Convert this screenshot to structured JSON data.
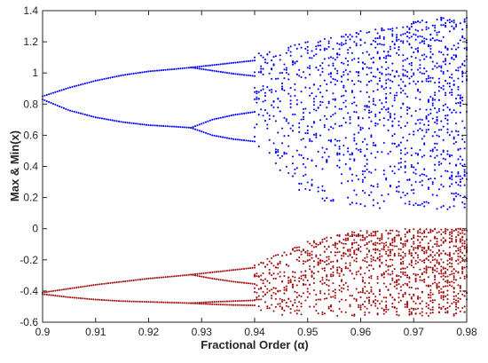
{
  "chart_data": {
    "type": "scatter",
    "title": "",
    "xlabel": "Fractional Order (α)",
    "ylabel": "Max & Min(x)",
    "xlim": [
      0.9,
      0.98
    ],
    "ylim": [
      -0.6,
      1.4
    ],
    "xticks": [
      "0.9",
      "0.91",
      "0.92",
      "0.93",
      "0.94",
      "0.95",
      "0.96",
      "0.97",
      "0.98"
    ],
    "yticks": [
      "-0.6",
      "-0.4",
      "-0.2",
      "0",
      "0.2",
      "0.4",
      "0.6",
      "0.8",
      "1",
      "1.2",
      "1.4"
    ],
    "grid": false,
    "legend": "none",
    "series": [
      {
        "color": "#0000ff",
        "marker": "dot",
        "periodic_branches": [
          {
            "x": [
              0.9,
              0.905,
              0.91,
              0.915,
              0.92,
              0.925,
              0.928
            ],
            "y": [
              0.85,
              0.905,
              0.95,
              0.985,
              1.01,
              1.025,
              1.035
            ]
          },
          {
            "x": [
              0.9,
              0.905,
              0.91,
              0.915,
              0.92,
              0.925,
              0.928
            ],
            "y": [
              0.83,
              0.76,
              0.715,
              0.685,
              0.665,
              0.655,
              0.648
            ]
          },
          {
            "x": [
              0.928,
              0.932,
              0.936,
              0.94
            ],
            "y": [
              1.035,
              1.05,
              1.065,
              1.08
            ]
          },
          {
            "x": [
              0.928,
              0.932,
              0.936,
              0.94
            ],
            "y": [
              1.035,
              1.015,
              0.995,
              0.98
            ]
          },
          {
            "x": [
              0.928,
              0.932,
              0.936,
              0.94
            ],
            "y": [
              0.648,
              0.7,
              0.73,
              0.75
            ]
          },
          {
            "x": [
              0.928,
              0.932,
              0.936,
              0.94
            ],
            "y": [
              0.648,
              0.6,
              0.575,
              0.56
            ]
          }
        ],
        "chaotic_band": {
          "x": [
            0.94,
            0.95,
            0.96,
            0.97,
            0.98
          ],
          "ymin": [
            0.5,
            0.2,
            0.13,
            0.12,
            0.12
          ],
          "ymax": [
            1.12,
            1.2,
            1.27,
            1.33,
            1.38
          ]
        }
      },
      {
        "color": "#a01010",
        "marker": "dot",
        "periodic_branches": [
          {
            "x": [
              0.9,
              0.905,
              0.91,
              0.915,
              0.92,
              0.925,
              0.928
            ],
            "y": [
              -0.41,
              -0.385,
              -0.36,
              -0.34,
              -0.32,
              -0.305,
              -0.295
            ]
          },
          {
            "x": [
              0.9,
              0.905,
              0.91,
              0.915,
              0.92,
              0.925,
              0.928
            ],
            "y": [
              -0.42,
              -0.44,
              -0.455,
              -0.465,
              -0.47,
              -0.475,
              -0.478
            ]
          },
          {
            "x": [
              0.928,
              0.932,
              0.936,
              0.94
            ],
            "y": [
              -0.295,
              -0.28,
              -0.265,
              -0.25
            ]
          },
          {
            "x": [
              0.928,
              0.932,
              0.936,
              0.94
            ],
            "y": [
              -0.295,
              -0.32,
              -0.34,
              -0.355
            ]
          },
          {
            "x": [
              0.928,
              0.932,
              0.936,
              0.94
            ],
            "y": [
              -0.478,
              -0.47,
              -0.465,
              -0.46
            ]
          },
          {
            "x": [
              0.928,
              0.932,
              0.936,
              0.94
            ],
            "y": [
              -0.478,
              -0.485,
              -0.49,
              -0.492
            ]
          }
        ],
        "chaotic_band": {
          "x": [
            0.94,
            0.95,
            0.96,
            0.97,
            0.98
          ],
          "ymin": [
            -0.55,
            -0.56,
            -0.56,
            -0.56,
            -0.56
          ],
          "ymax": [
            -0.23,
            -0.08,
            -0.01,
            0,
            0
          ]
        }
      }
    ]
  }
}
